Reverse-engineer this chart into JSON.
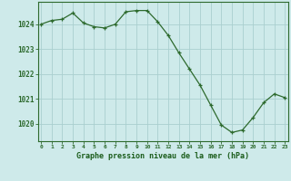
{
  "x": [
    0,
    1,
    2,
    3,
    4,
    5,
    6,
    7,
    8,
    9,
    10,
    11,
    12,
    13,
    14,
    15,
    16,
    17,
    18,
    19,
    20,
    21,
    22,
    23
  ],
  "y": [
    1024.0,
    1024.15,
    1024.2,
    1024.45,
    1024.05,
    1023.9,
    1023.85,
    1024.0,
    1024.5,
    1024.55,
    1024.55,
    1024.1,
    1023.55,
    1022.85,
    1022.2,
    1021.55,
    1020.75,
    1019.95,
    1019.65,
    1019.75,
    1020.25,
    1020.85,
    1021.2,
    1021.05
  ],
  "line_color": "#2d6a2d",
  "marker": "+",
  "bg_color": "#ceeaea",
  "grid_color": "#aacfcf",
  "axis_color": "#2d6a2d",
  "xlabel": "Graphe pression niveau de la mer (hPa)",
  "xlabel_color": "#1a5c1a",
  "yticks": [
    1020,
    1021,
    1022,
    1023,
    1024
  ],
  "xticks": [
    0,
    1,
    2,
    3,
    4,
    5,
    6,
    7,
    8,
    9,
    10,
    11,
    12,
    13,
    14,
    15,
    16,
    17,
    18,
    19,
    20,
    21,
    22,
    23
  ],
  "ylim": [
    1019.3,
    1024.9
  ],
  "xlim": [
    -0.3,
    23.3
  ]
}
